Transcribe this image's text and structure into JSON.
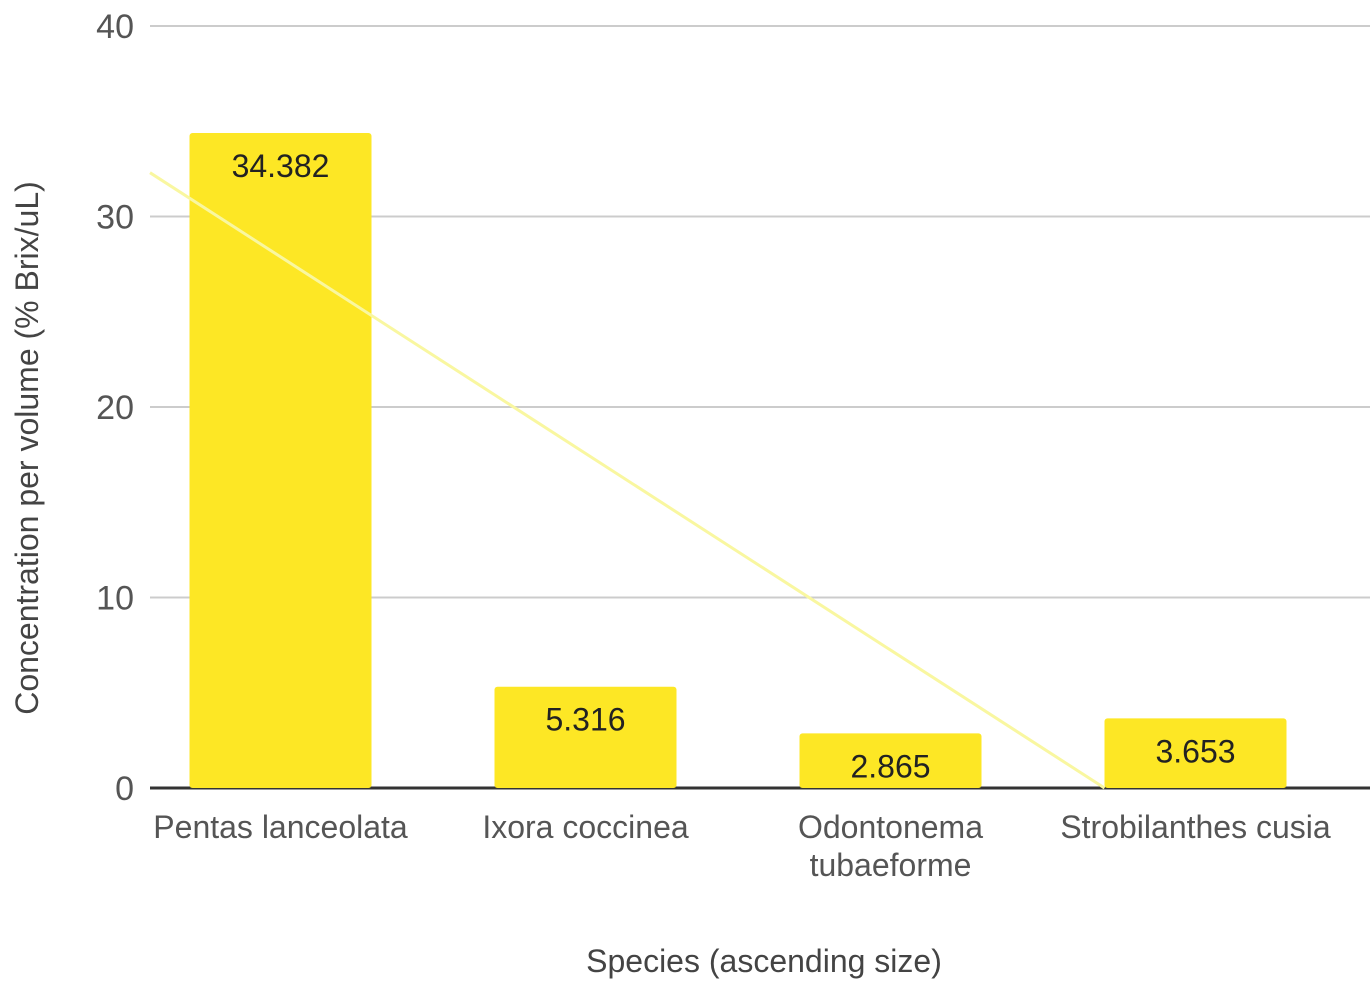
{
  "chart_data": {
    "type": "bar",
    "title": "",
    "xlabel": "Species (ascending size)",
    "ylabel": "Concentration per volume (% Brix/uL)",
    "ylim": [
      0,
      40
    ],
    "yticks": [
      0,
      10,
      20,
      30,
      40
    ],
    "grid": true,
    "categories": [
      [
        "Pentas lanceolata"
      ],
      [
        "Ixora coccinea"
      ],
      [
        "Odontonema",
        "tubaeforme"
      ],
      [
        "Strobilanthes cusia"
      ]
    ],
    "values": [
      34.382,
      5.316,
      2.865,
      3.653
    ],
    "value_labels": [
      "34.382",
      "5.316",
      "2.865",
      "3.653"
    ],
    "trendline": {
      "type": "linear",
      "start_y": 32.3,
      "end_y": 0.0
    },
    "colors": {
      "bar": "#FDE725",
      "trendline": "#F9F7A0",
      "grid": "#CCCCCC",
      "baseline": "#333333"
    }
  }
}
